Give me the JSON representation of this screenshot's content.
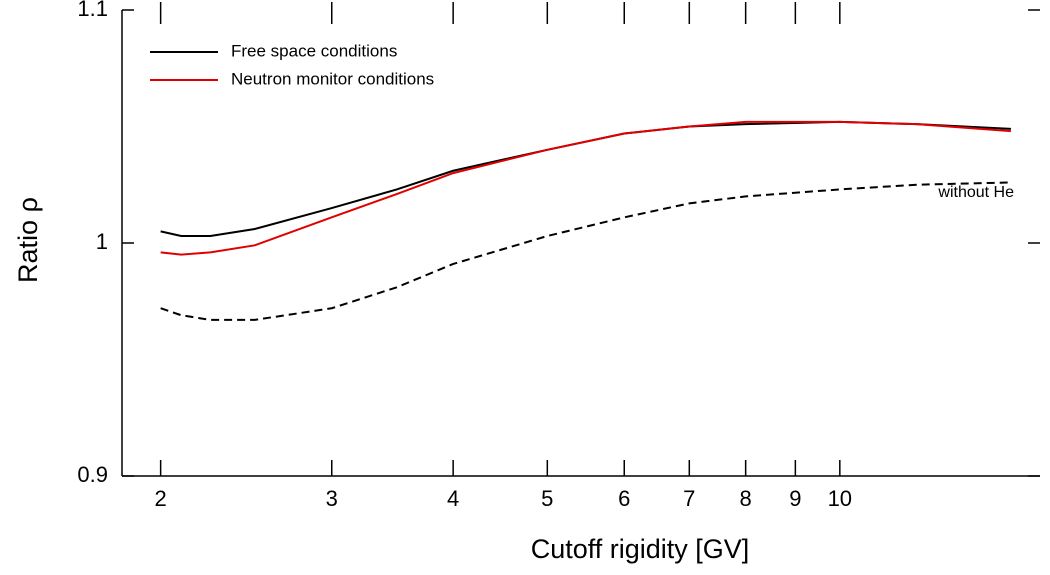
{
  "chart_data": {
    "type": "line",
    "xlabel": "Cutoff rigidity [GV]",
    "ylabel": "Ratio ρ",
    "xscale": "log",
    "x": [
      2,
      2.1,
      2.25,
      2.5,
      3,
      3.5,
      4,
      5,
      6,
      7,
      8,
      10,
      12,
      15
    ],
    "series": [
      {
        "name": "Free space conditions",
        "color": "#000000",
        "dash": false,
        "values": [
          1.005,
          1.003,
          1.003,
          1.006,
          1.015,
          1.023,
          1.031,
          1.04,
          1.047,
          1.05,
          1.051,
          1.052,
          1.051,
          1.049
        ]
      },
      {
        "name": "Neutron monitor conditions",
        "color": "#e00000",
        "dash": false,
        "values": [
          0.996,
          0.995,
          0.996,
          0.999,
          1.011,
          1.021,
          1.03,
          1.04,
          1.047,
          1.05,
          1.052,
          1.052,
          1.051,
          1.048
        ]
      },
      {
        "color": "#000000",
        "dash": true,
        "values": [
          0.972,
          0.969,
          0.967,
          0.967,
          0.972,
          0.981,
          0.991,
          1.003,
          1.011,
          1.017,
          1.02,
          1.023,
          1.025,
          1.026
        ]
      }
    ],
    "annotation": "without He",
    "xlim": [
      1.825,
      16.07
    ],
    "ylim": [
      0.9,
      1.1
    ],
    "xticks": [
      2,
      3,
      4,
      5,
      6,
      7,
      8,
      9,
      10
    ],
    "yticks": [
      {
        "value": 0.9,
        "label": "0.9"
      },
      1,
      {
        "value": 1.1,
        "label": "1.1"
      }
    ],
    "legend": "upper left"
  }
}
